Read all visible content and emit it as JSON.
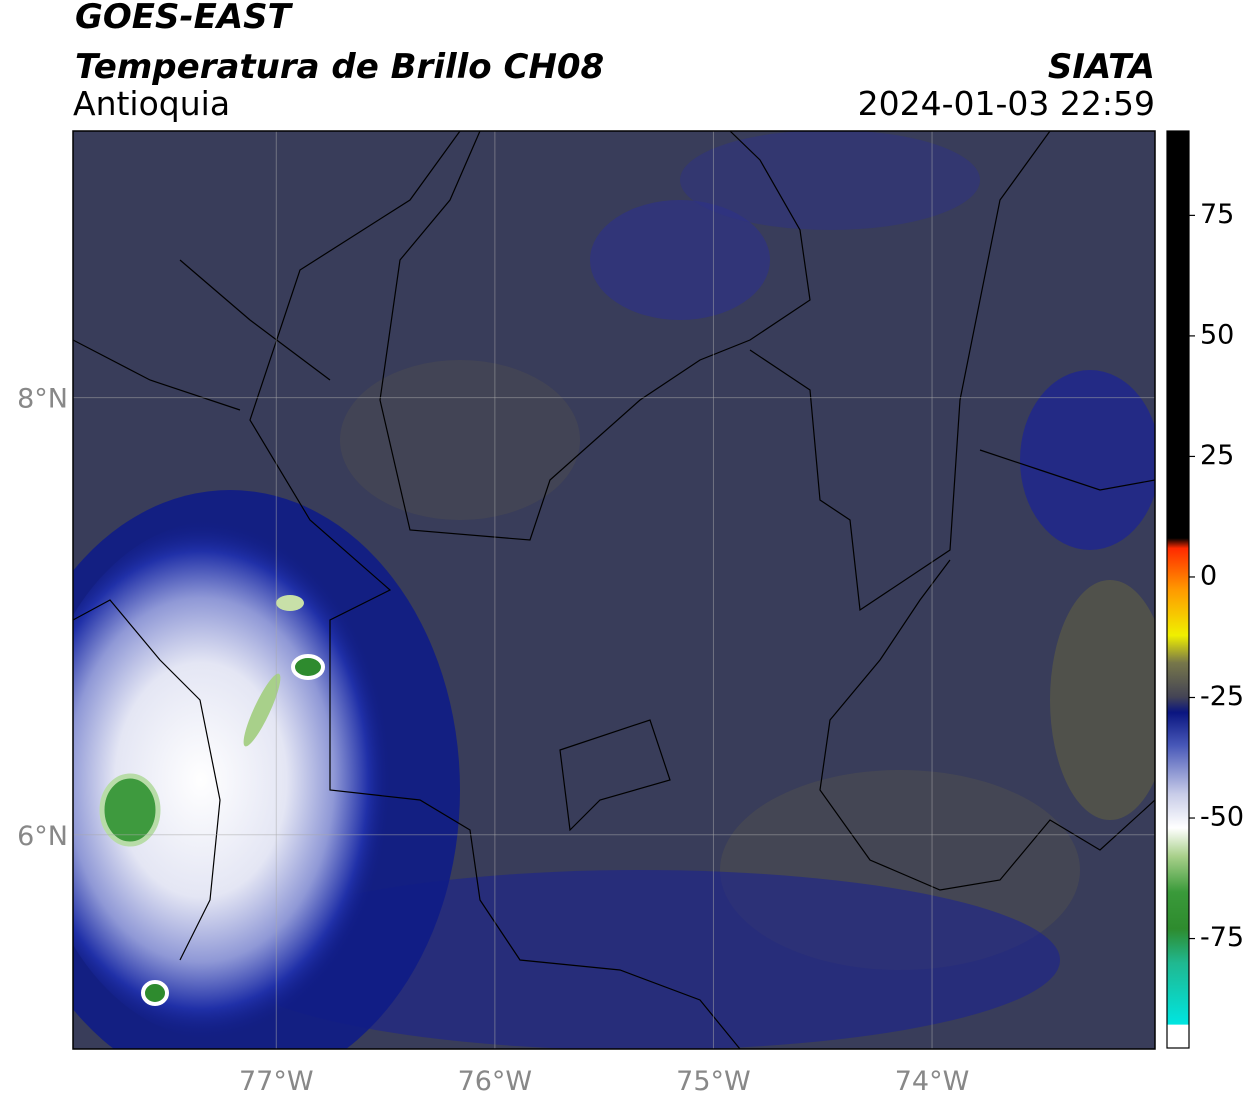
{
  "header": {
    "title": "GOES-EAST",
    "subtitle": "Temperatura de Brillo CH08",
    "region": "Antioquia",
    "source": "SIATA",
    "datetime": "2024-01-03 22:59"
  },
  "map": {
    "xlim": [
      -77.93,
      -72.98
    ],
    "ylim": [
      5.02,
      9.22
    ],
    "xticks": [
      {
        "value": -77,
        "label": "77°W"
      },
      {
        "value": -76,
        "label": "76°W"
      },
      {
        "value": -75,
        "label": "75°W"
      },
      {
        "value": -74,
        "label": "74°W"
      }
    ],
    "yticks": [
      {
        "value": 8,
        "label": "8°N"
      },
      {
        "value": 6,
        "label": "6°N"
      }
    ],
    "grid": true
  },
  "colorbar": {
    "lim": [
      -97.7,
      92.5
    ],
    "ticks": [
      75,
      50,
      25,
      0,
      -25,
      -50,
      -75
    ]
  }
}
